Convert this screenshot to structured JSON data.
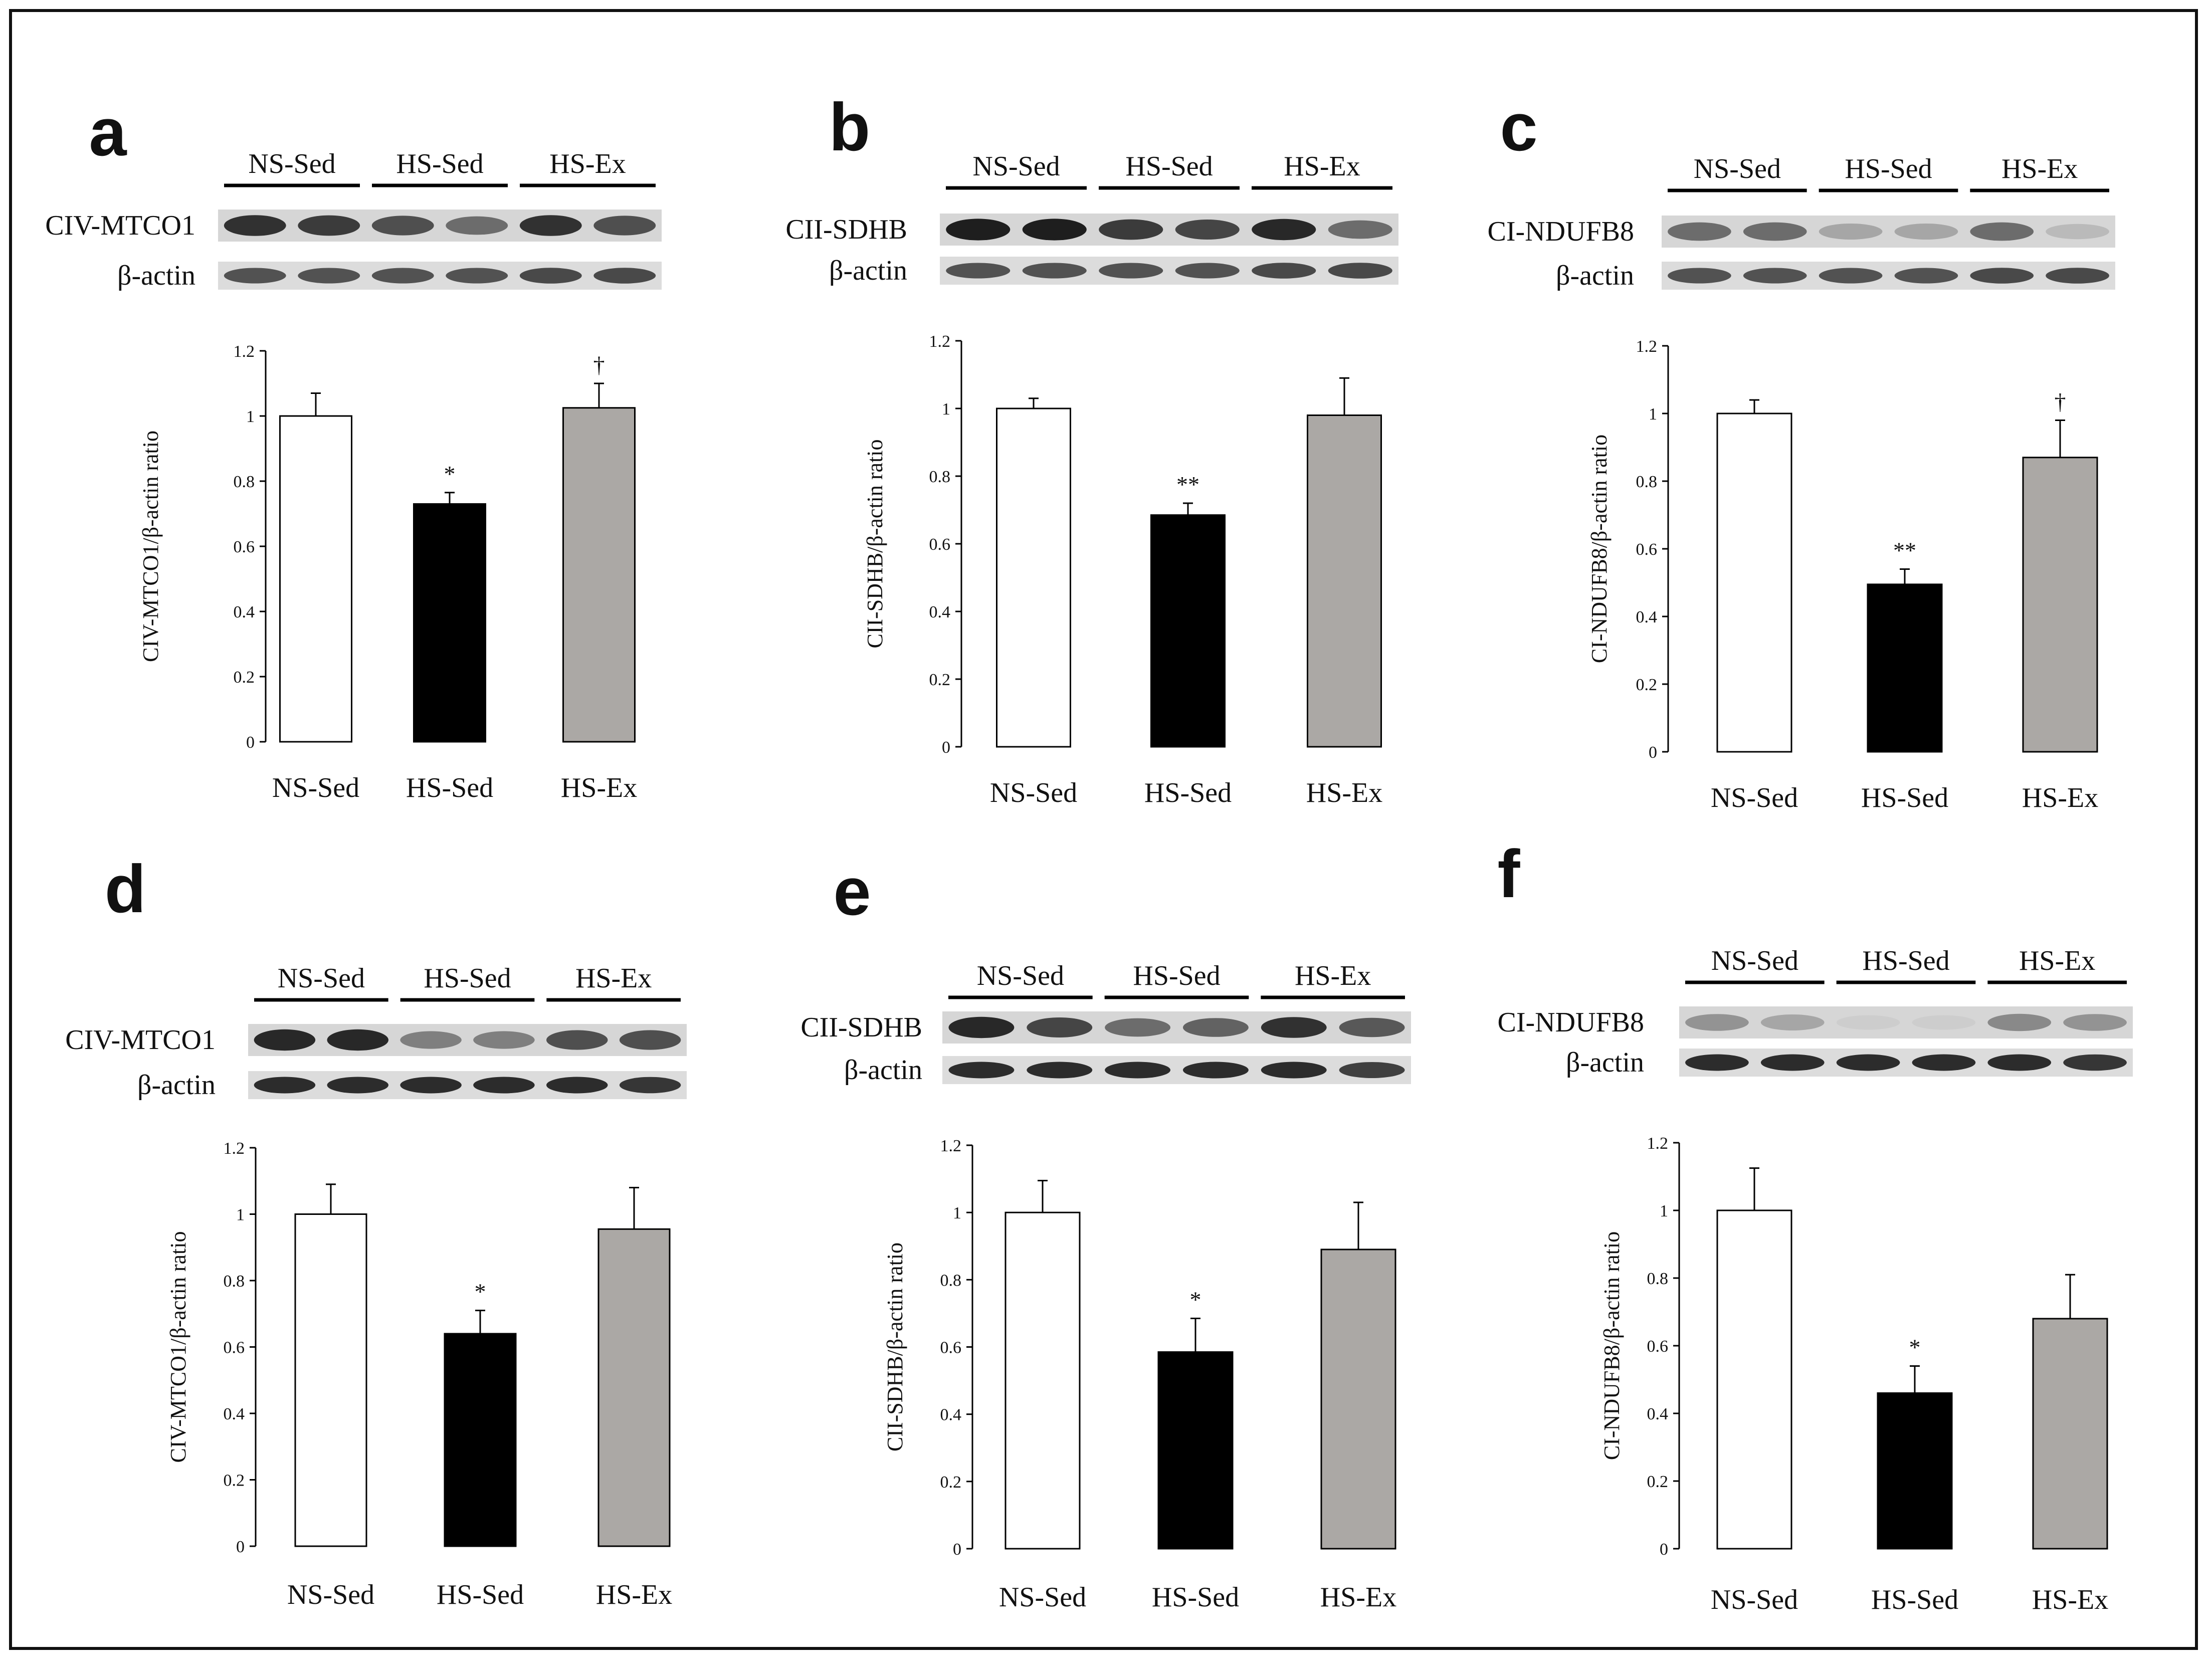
{
  "figure": {
    "panels": [
      {
        "letter": "a",
        "blot": {
          "groups": [
            "NS-Sed",
            "HS-Sed",
            "HS-Ex"
          ],
          "rows": [
            "CIV-MTCO1",
            "β-actin"
          ],
          "target_intensity": [
            0.85,
            0.8,
            0.7,
            0.55,
            0.85,
            0.7
          ],
          "actin_intensity": [
            0.7,
            0.7,
            0.7,
            0.7,
            0.75,
            0.75
          ]
        },
        "chart_data": {
          "type": "bar",
          "categories": [
            "NS-Sed",
            "HS-Sed",
            "HS-Ex"
          ],
          "values": [
            1.0,
            0.73,
            1.025
          ],
          "errors": [
            0.07,
            0.035,
            0.075
          ],
          "significance": [
            "",
            "*",
            "†"
          ],
          "colors": [
            "#ffffff",
            "#000000",
            "#aba8a5"
          ],
          "ylabel": "CIV-MTCO1/β-actin ratio",
          "ylim": [
            0,
            1.2
          ],
          "yticks": [
            "0",
            "0.2",
            "0.4",
            "0.6",
            "0.8",
            "1",
            "1.2"
          ]
        }
      },
      {
        "letter": "b",
        "blot": {
          "groups": [
            "NS-Sed",
            "HS-Sed",
            "HS-Ex"
          ],
          "rows": [
            "CII-SDHB",
            "β-actin"
          ],
          "target_intensity": [
            0.95,
            0.95,
            0.8,
            0.75,
            0.9,
            0.55
          ],
          "actin_intensity": [
            0.7,
            0.7,
            0.7,
            0.7,
            0.75,
            0.75
          ]
        },
        "chart_data": {
          "type": "bar",
          "categories": [
            "NS-Sed",
            "HS-Sed",
            "HS-Ex"
          ],
          "values": [
            1.0,
            0.685,
            0.98
          ],
          "errors": [
            0.03,
            0.035,
            0.11
          ],
          "significance": [
            "",
            "**",
            ""
          ],
          "colors": [
            "#ffffff",
            "#000000",
            "#aba8a5"
          ],
          "ylabel": "CII-SDHB/β-actin ratio",
          "ylim": [
            0,
            1.2
          ],
          "yticks": [
            "0",
            "0.2",
            "0.4",
            "0.6",
            "0.8",
            "1",
            "1.2"
          ]
        }
      },
      {
        "letter": "c",
        "blot": {
          "groups": [
            "NS-Sed",
            "HS-Sed",
            "HS-Ex"
          ],
          "rows": [
            "CI-NDUFB8",
            "β-actin"
          ],
          "target_intensity": [
            0.55,
            0.55,
            0.25,
            0.25,
            0.55,
            0.15
          ],
          "actin_intensity": [
            0.7,
            0.7,
            0.7,
            0.7,
            0.75,
            0.75
          ]
        },
        "chart_data": {
          "type": "bar",
          "categories": [
            "NS-Sed",
            "HS-Sed",
            "HS-Ex"
          ],
          "values": [
            1.0,
            0.495,
            0.87
          ],
          "errors": [
            0.04,
            0.045,
            0.11
          ],
          "significance": [
            "",
            "**",
            "†"
          ],
          "colors": [
            "#ffffff",
            "#000000",
            "#aba8a5"
          ],
          "ylabel": "CI-NDUFB8/β-actin ratio",
          "ylim": [
            0,
            1.2
          ],
          "yticks": [
            "0",
            "0.2",
            "0.4",
            "0.6",
            "0.8",
            "1",
            "1.2"
          ]
        }
      },
      {
        "letter": "d",
        "blot": {
          "groups": [
            "NS-Sed",
            "HS-Sed",
            "HS-Ex"
          ],
          "rows": [
            "CIV-MTCO1",
            "β-actin"
          ],
          "target_intensity": [
            0.9,
            0.9,
            0.45,
            0.45,
            0.7,
            0.7
          ],
          "actin_intensity": [
            0.9,
            0.9,
            0.9,
            0.9,
            0.9,
            0.85
          ]
        },
        "chart_data": {
          "type": "bar",
          "categories": [
            "NS-Sed",
            "HS-Sed",
            "HS-Ex"
          ],
          "values": [
            1.0,
            0.64,
            0.955
          ],
          "errors": [
            0.09,
            0.07,
            0.125
          ],
          "significance": [
            "",
            "*",
            ""
          ],
          "colors": [
            "#ffffff",
            "#000000",
            "#aba8a5"
          ],
          "ylabel": "CIV-MTCO1/β-actin ratio",
          "ylim": [
            0,
            1.2
          ],
          "yticks": [
            "0",
            "0.2",
            "0.4",
            "0.6",
            "0.8",
            "1",
            "1.2"
          ]
        }
      },
      {
        "letter": "e",
        "blot": {
          "groups": [
            "NS-Sed",
            "HS-Sed",
            "HS-Ex"
          ],
          "rows": [
            "CII-SDHB",
            "β-actin"
          ],
          "target_intensity": [
            0.9,
            0.75,
            0.55,
            0.6,
            0.85,
            0.65
          ],
          "actin_intensity": [
            0.9,
            0.9,
            0.9,
            0.9,
            0.9,
            0.8
          ]
        },
        "chart_data": {
          "type": "bar",
          "categories": [
            "NS-Sed",
            "HS-Sed",
            "HS-Ex"
          ],
          "values": [
            1.0,
            0.585,
            0.89
          ],
          "errors": [
            0.095,
            0.1,
            0.14
          ],
          "significance": [
            "",
            "*",
            ""
          ],
          "colors": [
            "#ffffff",
            "#000000",
            "#aba8a5"
          ],
          "ylabel": "CII-SDHB/β-actin ratio",
          "ylim": [
            0,
            1.2
          ],
          "yticks": [
            "0",
            "0.2",
            "0.4",
            "0.6",
            "0.8",
            "1",
            "1.2"
          ]
        }
      },
      {
        "letter": "f",
        "blot": {
          "groups": [
            "NS-Sed",
            "HS-Sed",
            "HS-Ex"
          ],
          "rows": [
            "CI-NDUFB8",
            "β-actin"
          ],
          "target_intensity": [
            0.35,
            0.25,
            0.05,
            0.05,
            0.4,
            0.35
          ],
          "actin_intensity": [
            0.9,
            0.9,
            0.9,
            0.9,
            0.9,
            0.85
          ]
        },
        "chart_data": {
          "type": "bar",
          "categories": [
            "NS-Sed",
            "HS-Sed",
            "HS-Ex"
          ],
          "values": [
            1.0,
            0.46,
            0.68
          ],
          "errors": [
            0.125,
            0.08,
            0.13
          ],
          "significance": [
            "",
            "*",
            ""
          ],
          "colors": [
            "#ffffff",
            "#000000",
            "#aba8a5"
          ],
          "ylabel": "CI-NDUFB8/β-actin ratio",
          "ylim": [
            0,
            1.2
          ],
          "yticks": [
            "0",
            "0.2",
            "0.4",
            "0.6",
            "0.8",
            "1",
            "1.2"
          ]
        }
      }
    ]
  }
}
